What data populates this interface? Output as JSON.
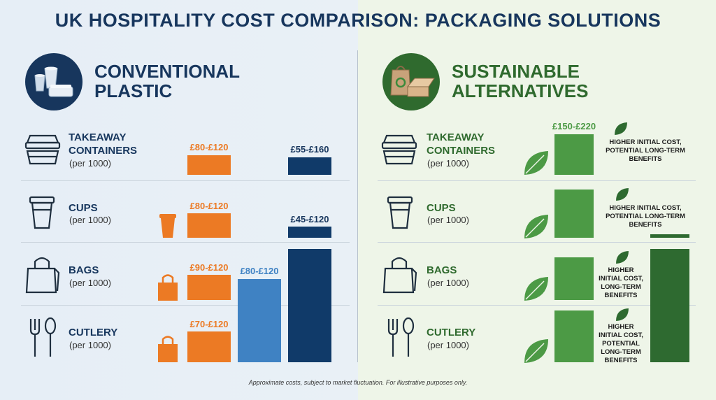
{
  "title": "UK HOSPITALITY COST COMPARISON: PACKAGING SOLUTIONS",
  "colors": {
    "navy": "#17365d",
    "orange": "#ec7a24",
    "mid_blue": "#3f82c3",
    "dark_navy": "#103a69",
    "green": "#4c9a45",
    "dark_green": "#2e6a30",
    "heading_green": "#2f6a2e"
  },
  "left": {
    "heading_line1": "CONVENTIONAL",
    "heading_line2": "PLASTIC",
    "icon": "plastic-cups-container-icon"
  },
  "right": {
    "heading_line1": "SUSTAINABLE",
    "heading_line2": "ALTERNATIVES",
    "icon": "paper-bag-box-recycle-icon"
  },
  "rows": [
    {
      "label_line1": "TAKEAWAY",
      "label_line2": "CONTAINERS",
      "sub": "(per 1000)",
      "icon": "takeaway-container-icon"
    },
    {
      "label_line1": "CUPS",
      "label_line2": "",
      "sub": "(per 1000)",
      "icon": "cup-icon"
    },
    {
      "label_line1": "BAGS",
      "label_line2": "",
      "sub": "(per 1000)",
      "icon": "bag-icon"
    },
    {
      "label_line1": "CUTLERY",
      "label_line2": "",
      "sub": "(per 1000)",
      "icon": "cutlery-icon"
    }
  ],
  "chart_data": [
    {
      "type": "bar",
      "panel": "CONVENTIONAL PLASTIC",
      "categories": [
        "TAKEAWAY CONTAINERS",
        "CUPS",
        "BAGS",
        "CUTLERY"
      ],
      "unit": "£ per 1000",
      "series": [
        {
          "values": [
            [
              80,
              120
            ],
            [
              80,
              120
            ],
            [
              90,
              120
            ],
            [
              70,
              120
            ]
          ],
          "labels": [
            "£80-£120",
            "£80-£120",
            "£90-£120",
            "£70-£120"
          ],
          "color": "#ec7a24"
        },
        {
          "values": [
            [
              55,
              160
            ],
            [
              45,
              120
            ],
            [
              80,
              120
            ]
          ],
          "labels": [
            "£55-£160",
            "£45-£120",
            "£80-£120"
          ],
          "color": "#103a69"
        }
      ]
    },
    {
      "type": "bar",
      "panel": "SUSTAINABLE ALTERNATIVES",
      "categories": [
        "TAKEAWAY CONTAINERS",
        "CUPS",
        "BAGS",
        "CUTLERY"
      ],
      "unit": "£ per 1000",
      "series": [
        {
          "values": [
            [
              150,
              220
            ]
          ],
          "labels": [
            "£150-£220"
          ],
          "color": "#4c9a45"
        }
      ],
      "notes": [
        "HIGHER INITIAL COST, POTENTIAL LONG-TERM BENEFITS",
        "HIGHER INITIAL COST, POTENTIAL LONG-TERM BENEFITS",
        "HIGHER INITIAL COST, LONG-TERM BENEFITS",
        "HIGHER INITIAL COST, POTENTIAL LONG-TERM BENEFITS"
      ]
    }
  ],
  "footnote": "Approximate costs, subject to market fluctuation. For illustrative purposes only."
}
